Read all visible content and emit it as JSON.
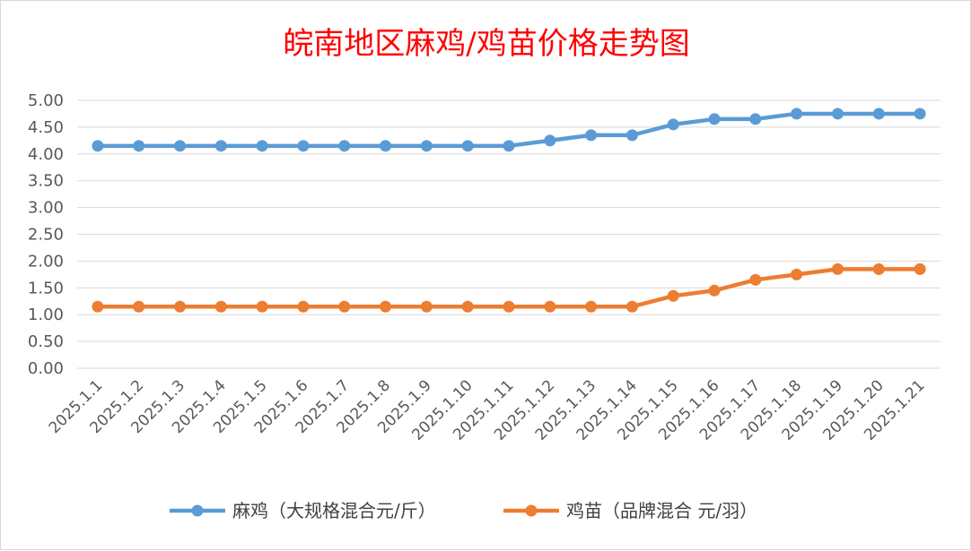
{
  "chart_data": {
    "type": "line",
    "title": "皖南地区麻鸡/鸡苗价格走势图",
    "xlabel": "",
    "ylabel": "",
    "categories": [
      "2025.1.1",
      "2025.1.2",
      "2025.1.3",
      "2025.1.4",
      "2025.1.5",
      "2025.1.6",
      "2025.1.7",
      "2025.1.8",
      "2025.1.9",
      "2025.1.10",
      "2025.1.11",
      "2025.1.12",
      "2025.1.13",
      "2025.1.14",
      "2025.1.15",
      "2025.1.16",
      "2025.1.17",
      "2025.1.18",
      "2025.1.19",
      "2025.1.20",
      "2025.1.21"
    ],
    "ylim": [
      0,
      5
    ],
    "yticks": [
      "0.00",
      "0.50",
      "1.00",
      "1.50",
      "2.00",
      "2.50",
      "3.00",
      "3.50",
      "4.00",
      "4.50",
      "5.00"
    ],
    "grid": true,
    "legend_position": "bottom",
    "series": [
      {
        "name": "麻鸡（大规格混合元/斤）",
        "color": "#5b9bd5",
        "values": [
          4.15,
          4.15,
          4.15,
          4.15,
          4.15,
          4.15,
          4.15,
          4.15,
          4.15,
          4.15,
          4.15,
          4.25,
          4.35,
          4.35,
          4.55,
          4.65,
          4.65,
          4.75,
          4.75,
          4.75,
          4.75
        ]
      },
      {
        "name": "鸡苗（品牌混合 元/羽）",
        "color": "#ed7d31",
        "values": [
          1.15,
          1.15,
          1.15,
          1.15,
          1.15,
          1.15,
          1.15,
          1.15,
          1.15,
          1.15,
          1.15,
          1.15,
          1.15,
          1.15,
          1.35,
          1.45,
          1.65,
          1.75,
          1.85,
          1.85,
          1.85
        ]
      }
    ]
  }
}
